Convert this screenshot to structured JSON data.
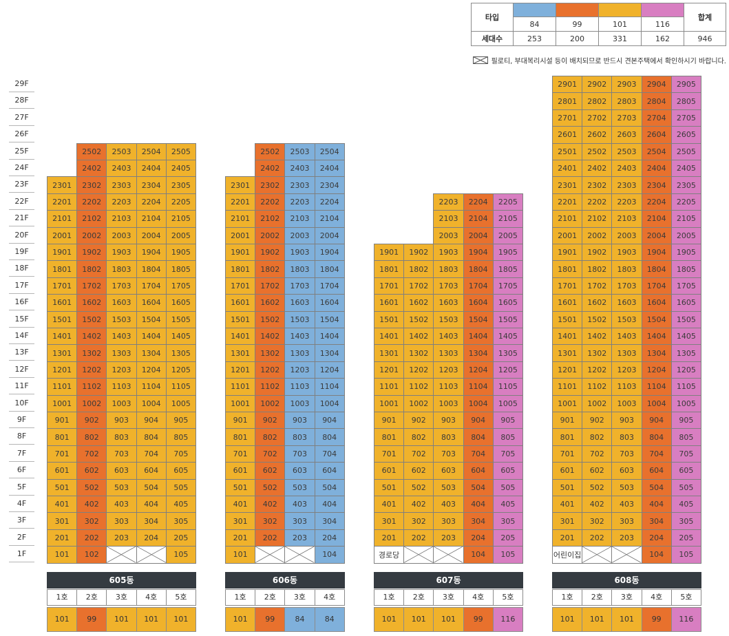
{
  "colors": {
    "84": "#7fb0db",
    "99": "#e8712d",
    "101": "#f0b22b",
    "116": "#d87ec1"
  },
  "legend": {
    "type_header": "타입",
    "count_header": "세대수",
    "total_header": "합계",
    "types": [
      "84",
      "99",
      "101",
      "116"
    ],
    "counts": [
      "253",
      "200",
      "331",
      "162"
    ],
    "total": "946"
  },
  "note": "필로티, 부대복리시설 등이 배치되므로 반드시 견본주택에서 확인하시기 바랍니다.",
  "floors": [
    "29F",
    "28F",
    "27F",
    "26F",
    "25F",
    "24F",
    "23F",
    "22F",
    "21F",
    "20F",
    "19F",
    "18F",
    "17F",
    "16F",
    "15F",
    "14F",
    "13F",
    "12F",
    "11F",
    "10F",
    "9F",
    "8F",
    "7F",
    "6F",
    "5F",
    "4F",
    "3F",
    "2F",
    "1F"
  ],
  "buildings": [
    {
      "name": "605동",
      "ho_labels": [
        "1호",
        "2호",
        "3호",
        "4호",
        "5호"
      ],
      "types": [
        "101",
        "99",
        "101",
        "101",
        "101"
      ],
      "max_floor": [
        23,
        25,
        25,
        25,
        25
      ],
      "first_floor": [
        "101",
        "102",
        "",
        "",
        "105"
      ]
    },
    {
      "name": "606동",
      "ho_labels": [
        "1호",
        "2호",
        "3호",
        "4호"
      ],
      "types": [
        "101",
        "99",
        "84",
        "84"
      ],
      "max_floor": [
        23,
        25,
        25,
        25
      ],
      "first_floor": [
        "101",
        "",
        "",
        "104"
      ]
    },
    {
      "name": "607동",
      "ho_labels": [
        "1호",
        "2호",
        "3호",
        "4호",
        "5호"
      ],
      "types": [
        "101",
        "101",
        "101",
        "99",
        "116"
      ],
      "max_floor": [
        19,
        19,
        22,
        22,
        22
      ],
      "first_floor": [
        "경로당",
        "",
        "",
        "104",
        "105"
      ]
    },
    {
      "name": "608동",
      "ho_labels": [
        "1호",
        "2호",
        "3호",
        "4호",
        "5호"
      ],
      "types": [
        "101",
        "101",
        "101",
        "99",
        "116"
      ],
      "max_floor": [
        29,
        29,
        29,
        29,
        29
      ],
      "first_floor": [
        "어린이집",
        "",
        "",
        "104",
        "105"
      ]
    }
  ]
}
